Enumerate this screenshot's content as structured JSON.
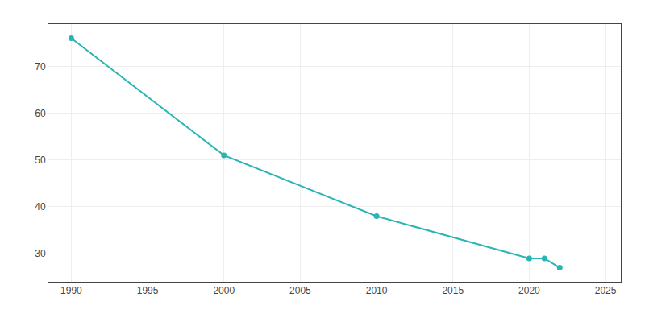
{
  "chart_data": {
    "type": "line",
    "x": [
      1990,
      2000,
      2010,
      2020,
      2021,
      2022
    ],
    "values": [
      76,
      51,
      38,
      29,
      29,
      27
    ],
    "color": "#2ab5b5",
    "marker": "circle",
    "xlim": [
      1988.5,
      2026
    ],
    "ylim": [
      24,
      79
    ],
    "xticks": [
      1990,
      1995,
      2000,
      2005,
      2010,
      2015,
      2020,
      2025
    ],
    "yticks": [
      30,
      40,
      50,
      60,
      70
    ],
    "grid": true
  }
}
